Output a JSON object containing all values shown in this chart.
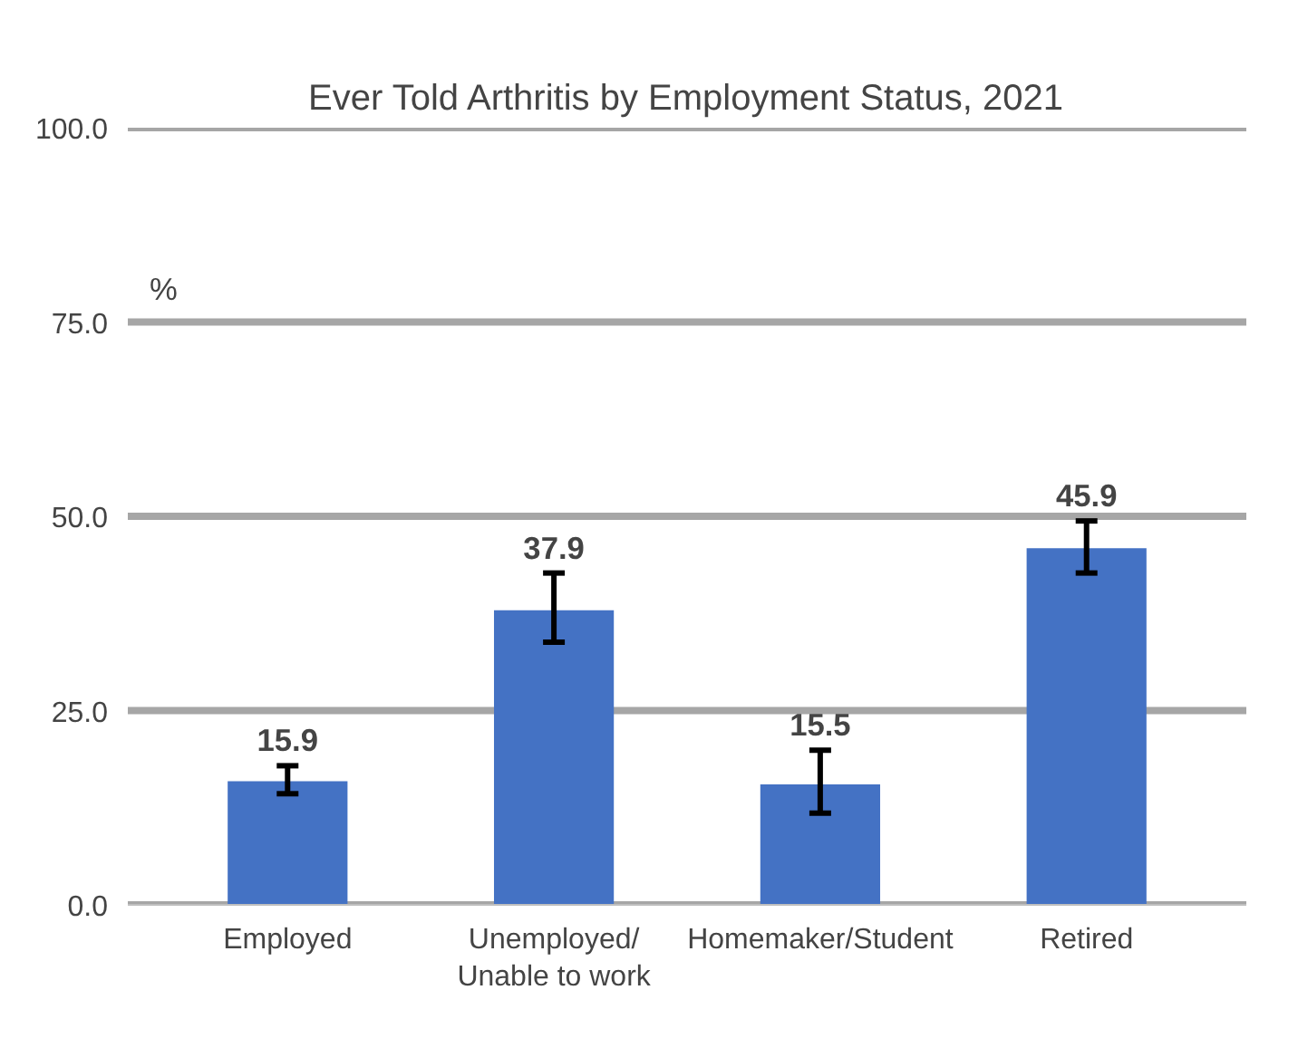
{
  "chart_data": {
    "type": "bar",
    "title": "Ever Told Arthritis by Employment Status, 2021",
    "ylabel": "%",
    "categories": [
      "Employed",
      "Unemployed/\nUnable to work",
      "Homemaker/Student",
      "Retired"
    ],
    "values": [
      15.9,
      37.9,
      15.5,
      45.9
    ],
    "color": "#4472c4",
    "errors": [
      [
        14.3,
        17.9
      ],
      [
        33.8,
        42.7
      ],
      [
        11.8,
        19.9
      ],
      [
        42.7,
        49.4
      ]
    ],
    "ylim": [
      0,
      100
    ],
    "yticks": [
      {
        "value": 0,
        "label": "0.0"
      },
      {
        "value": 25,
        "label": "25.0"
      },
      {
        "value": 50,
        "label": "50.0"
      },
      {
        "value": 75,
        "label": "75.0"
      },
      {
        "value": 100,
        "label": "100.0"
      }
    ],
    "grid": "y",
    "data_labels": true
  }
}
